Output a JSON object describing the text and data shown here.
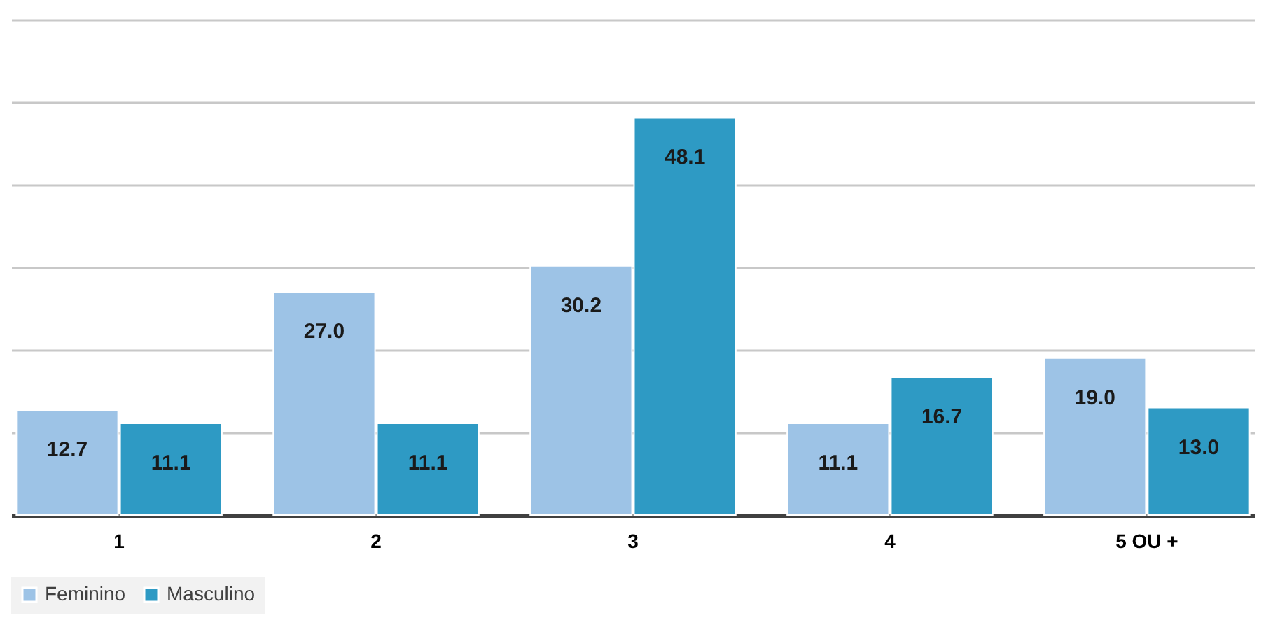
{
  "chart_data": {
    "type": "bar",
    "categories": [
      "1",
      "2",
      "3",
      "4",
      "5 OU +"
    ],
    "series": [
      {
        "name": "Feminino",
        "color": "#9dc3e6",
        "values": [
          12.7,
          27.0,
          30.2,
          11.1,
          19.0
        ],
        "value_labels": [
          "12.7",
          "27.0",
          "30.2",
          "11.1",
          "19.0"
        ]
      },
      {
        "name": "Masculino",
        "color": "#2e9ac4",
        "values": [
          11.1,
          11.1,
          48.1,
          16.7,
          13.0
        ],
        "value_labels": [
          "11.1",
          "11.1",
          "48.1",
          "16.7",
          "13.0"
        ]
      }
    ],
    "ylim": [
      0,
      60
    ],
    "yticks": [
      0,
      10,
      20,
      30,
      40,
      50,
      60
    ],
    "grid": "y",
    "tick_labels": "x",
    "legend": "bottom"
  }
}
